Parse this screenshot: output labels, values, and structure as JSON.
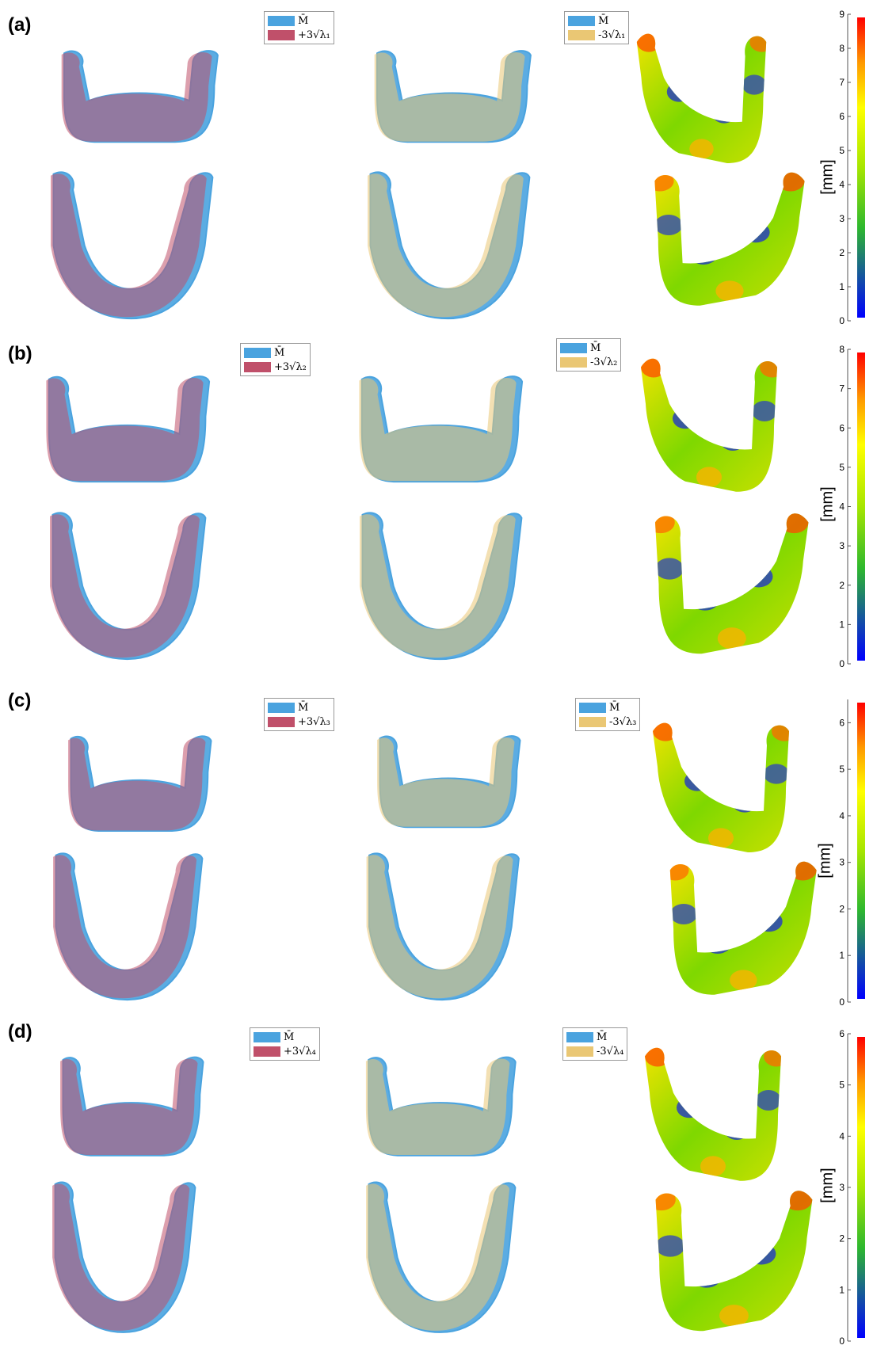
{
  "colors": {
    "mean": "#4aa3df",
    "plus": "#c0506a",
    "minus": "#eac774",
    "heat_low": "#0000ff",
    "heat_high": "#ff0000"
  },
  "colorbar_title": "[mm]",
  "panels": [
    {
      "label": "(a)",
      "legend_plus": {
        "mean": "M̄",
        "mode": "+3√λ₁"
      },
      "legend_minus": {
        "mean": "M̄",
        "mode": "-3√λ₁"
      },
      "colorbar": {
        "ticks": [
          "0",
          "1",
          "2",
          "3",
          "4",
          "5",
          "6",
          "7",
          "8",
          "9"
        ],
        "max": 9
      }
    },
    {
      "label": "(b)",
      "legend_plus": {
        "mean": "M̄",
        "mode": "+3√λ₂"
      },
      "legend_minus": {
        "mean": "M̄",
        "mode": "-3√λ₂"
      },
      "colorbar": {
        "ticks": [
          "0",
          "1",
          "2",
          "3",
          "4",
          "5",
          "6",
          "7",
          "8"
        ],
        "max": 8
      }
    },
    {
      "label": "(c)",
      "legend_plus": {
        "mean": "M̄",
        "mode": "+3√λ₃"
      },
      "legend_minus": {
        "mean": "M̄",
        "mode": "-3√λ₃"
      },
      "colorbar": {
        "ticks": [
          "0",
          "1",
          "2",
          "3",
          "4",
          "5",
          "6"
        ],
        "max": 6.5
      }
    },
    {
      "label": "(d)",
      "legend_plus": {
        "mean": "M̄",
        "mode": "+3√λ₄"
      },
      "legend_minus": {
        "mean": "M̄",
        "mode": "-3√λ₄"
      },
      "colorbar": {
        "ticks": [
          "0",
          "1",
          "2",
          "3",
          "4",
          "5",
          "6"
        ],
        "max": 6
      }
    }
  ]
}
